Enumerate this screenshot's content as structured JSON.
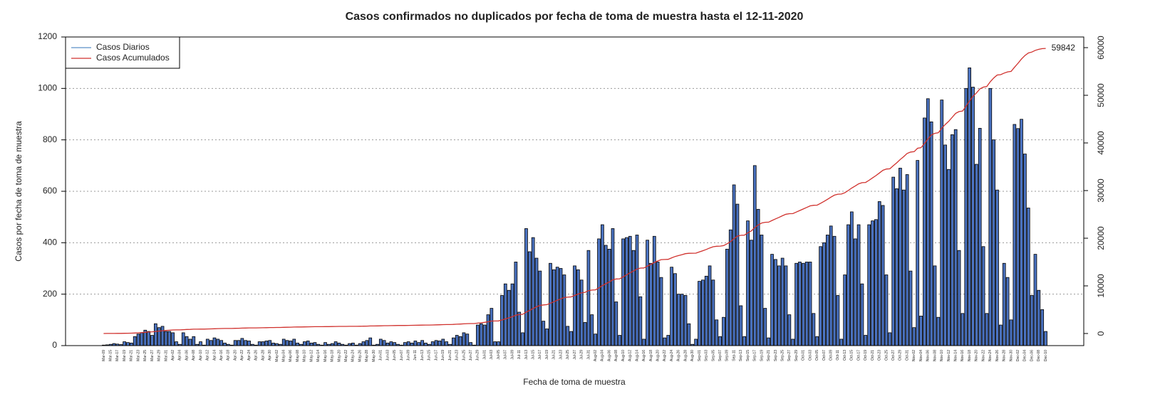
{
  "chart_data": {
    "type": "bar",
    "title": "Casos confirmados no duplicados por fecha de toma de muestra hasta el 12-11-2020",
    "xlabel": "Fecha de toma de muestra",
    "ylabel": "Casos por fecha de toma de muestra",
    "categories": [
      "Mar-09",
      null,
      "Mar-15",
      null,
      "Mar-17",
      null,
      "Mar-19",
      null,
      "Mar-21",
      null,
      "Mar-23",
      null,
      "Mar-25",
      null,
      "Mar-27",
      null,
      "Mar-29",
      null,
      "Mar-31",
      null,
      "Apr-02",
      null,
      "Apr-04",
      null,
      "Apr-06",
      null,
      "Apr-08",
      null,
      "Apr-10",
      null,
      "Apr-12",
      null,
      "Apr-14",
      null,
      "Apr-16",
      null,
      "Apr-18",
      null,
      "Apr-20",
      null,
      "Apr-22",
      null,
      "Apr-24",
      null,
      "Apr-26",
      null,
      "Apr-28",
      null,
      "Apr-30",
      null,
      "May-02",
      null,
      "May-04",
      null,
      "May-06",
      null,
      "May-08",
      null,
      "May-10",
      null,
      "May-12",
      null,
      "May-14",
      null,
      "May-16",
      null,
      "May-18",
      null,
      "May-20",
      null,
      "May-22",
      null,
      "May-24",
      null,
      "May-26",
      null,
      "May-28",
      null,
      "May-30",
      null,
      "Jun-01",
      null,
      "Jun-03",
      null,
      "Jun-05",
      null,
      "Jun-07",
      null,
      "Jun-09",
      null,
      "Jun-11",
      null,
      "Jun-13",
      null,
      "Jun-15",
      null,
      "Jun-17",
      null,
      "Jun-19",
      null,
      "Jun-21",
      null,
      "Jun-23",
      null,
      "Jun-25",
      null,
      "Jun-27",
      null,
      "Jun-29",
      null,
      "Jul-01",
      null,
      "Jul-03",
      null,
      "Jul-05",
      null,
      "Jul-07",
      null,
      "Jul-09",
      null,
      "Jul-11",
      null,
      "Jul-13",
      null,
      "Jul-15",
      null,
      "Jul-17",
      null,
      "Jul-19",
      null,
      "Jul-21",
      null,
      "Jul-23",
      null,
      "Jul-25",
      null,
      "Jul-27",
      null,
      "Jul-29",
      null,
      "Jul-31",
      null,
      "Aug-02",
      null,
      "Aug-04",
      null,
      "Aug-06",
      null,
      "Aug-08",
      null,
      "Aug-10",
      null,
      "Aug-12",
      null,
      "Aug-14",
      null,
      "Aug-16",
      null,
      "Aug-18",
      null,
      "Aug-20",
      null,
      "Aug-22",
      null,
      "Aug-24",
      null,
      "Aug-26",
      null,
      "Aug-28",
      null,
      "Aug-30",
      null,
      "Sep-01",
      null,
      "Sep-03",
      null,
      "Sep-05",
      null,
      "Sep-07",
      null,
      "Sep-09",
      null,
      "Sep-11",
      null,
      "Sep-13",
      null,
      "Sep-15",
      null,
      "Sep-17",
      null,
      "Sep-19",
      null,
      "Sep-21",
      null,
      "Sep-23",
      null,
      "Sep-25",
      null,
      "Sep-27",
      null,
      "Sep-29",
      null,
      "Oct-01",
      null,
      "Oct-03",
      null,
      "Oct-05",
      null,
      "Oct-07",
      null,
      "Oct-09",
      null,
      "Oct-11",
      null,
      "Oct-13",
      null,
      "Oct-15",
      null,
      "Oct-17",
      null,
      "Oct-19",
      null,
      "Oct-21",
      null,
      "Oct-23",
      null,
      "Oct-25",
      null,
      "Oct-27",
      null,
      "Oct-29",
      null,
      "Oct-31",
      null,
      "Nov-02",
      null,
      "Nov-04",
      null,
      "Nov-06",
      null,
      "Nov-08",
      null,
      "Nov-10",
      null,
      "Nov-12",
      null,
      "Nov-14",
      null,
      "Nov-16",
      null,
      "Nov-18",
      null,
      "Nov-20",
      null,
      "Nov-22",
      null,
      "Nov-24",
      null,
      "Nov-26",
      null,
      "Nov-28",
      null,
      "Nov-30",
      null,
      "Dec-02",
      null,
      "Dec-04",
      null,
      "Dec-06",
      null,
      "Dec-08",
      null,
      "Dec-10"
    ],
    "series": [
      {
        "name": "Casos Diarios",
        "type": "bar",
        "color": "#4a72c0",
        "legend_color": "#5b8fc8",
        "values": [
          2,
          3,
          5,
          8,
          6,
          4,
          15,
          12,
          10,
          35,
          45,
          50,
          60,
          55,
          40,
          85,
          70,
          75,
          55,
          55,
          50,
          15,
          5,
          50,
          35,
          25,
          35,
          5,
          15,
          2,
          25,
          20,
          30,
          25,
          20,
          10,
          5,
          2,
          20,
          20,
          28,
          20,
          18,
          5,
          2,
          15,
          15,
          18,
          20,
          10,
          8,
          5,
          25,
          20,
          18,
          25,
          10,
          5,
          15,
          18,
          10,
          12,
          5,
          2,
          12,
          5,
          8,
          15,
          10,
          5,
          2,
          8,
          10,
          2,
          8,
          15,
          20,
          30,
          2,
          5,
          25,
          20,
          10,
          15,
          12,
          5,
          2,
          12,
          15,
          10,
          18,
          12,
          20,
          10,
          5,
          15,
          20,
          18,
          25,
          15,
          5,
          30,
          40,
          35,
          50,
          45,
          12,
          2,
          80,
          85,
          80,
          120,
          145,
          15,
          15,
          195,
          240,
          215,
          240,
          325,
          130,
          50,
          455,
          365,
          420,
          340,
          290,
          95,
          65,
          320,
          295,
          305,
          300,
          275,
          75,
          55,
          310,
          295,
          255,
          90,
          370,
          120,
          45,
          415,
          470,
          390,
          375,
          455,
          170,
          40,
          415,
          420,
          425,
          370,
          430,
          190,
          25,
          410,
          320,
          425,
          325,
          265,
          30,
          40,
          305,
          280,
          200,
          200,
          195,
          85,
          5,
          25,
          250,
          255,
          270,
          310,
          255,
          100,
          35,
          110,
          375,
          450,
          625,
          550,
          155,
          35,
          485,
          410,
          700,
          530,
          430,
          145,
          30,
          355,
          335,
          310,
          340,
          310,
          120,
          25,
          320,
          325,
          320,
          325,
          325,
          125,
          35,
          385,
          400,
          430,
          465,
          425,
          195,
          25,
          275,
          470,
          520,
          415,
          470,
          240,
          40,
          470,
          485,
          490,
          560,
          545,
          275,
          50,
          655,
          610,
          690,
          605,
          665,
          290,
          70,
          720,
          115,
          885,
          960,
          870,
          310,
          110,
          955,
          780,
          685,
          820,
          840,
          370,
          125,
          1000,
          1080,
          1005,
          705,
          845,
          385,
          125,
          1000,
          800,
          605,
          80,
          320,
          265,
          100,
          860,
          844,
          880,
          745,
          535,
          195,
          355,
          215,
          140,
          55
        ]
      },
      {
        "name": "Casos Acumulados",
        "type": "line",
        "axis": "y2",
        "color": "#d0312d",
        "values": [
          2,
          5,
          10,
          18,
          24,
          28,
          43,
          55,
          65,
          100,
          145,
          195,
          255,
          310,
          350,
          435,
          505,
          580,
          635,
          690,
          740,
          755,
          760,
          810,
          845,
          870,
          905,
          910,
          925,
          927,
          952,
          972,
          1002,
          1027,
          1047,
          1057,
          1062,
          1064,
          1084,
          1104,
          1132,
          1152,
          1170,
          1175,
          1177,
          1192,
          1207,
          1225,
          1245,
          1255,
          1263,
          1268,
          1293,
          1313,
          1331,
          1356,
          1366,
          1371,
          1386,
          1404,
          1414,
          1426,
          1431,
          1433,
          1445,
          1450,
          1458,
          1473,
          1483,
          1488,
          1490,
          1498,
          1508,
          1510,
          1518,
          1533,
          1553,
          1583,
          1585,
          1590,
          1615,
          1635,
          1645,
          1660,
          1672,
          1677,
          1679,
          1691,
          1706,
          1716,
          1734,
          1746,
          1766,
          1776,
          1781,
          1796,
          1816,
          1834,
          1859,
          1874,
          1879,
          1909,
          1949,
          1984,
          2034,
          2079,
          2091,
          2093,
          2173,
          2258,
          2338,
          2458,
          2603,
          2618,
          2633,
          2828,
          3068,
          3283,
          3523,
          3848,
          3978,
          4028,
          4483,
          4848,
          5268,
          5608,
          5898,
          5993,
          6058,
          6378,
          6673,
          6978,
          7278,
          7553,
          7628,
          7683,
          7993,
          8288,
          8543,
          8633,
          9003,
          9123,
          9168,
          9583,
          10053,
          10443,
          10818,
          11273,
          11443,
          11483,
          11898,
          12318,
          12743,
          13113,
          13543,
          13733,
          13758,
          14168,
          14488,
          14913,
          15238,
          15503,
          15533,
          15573,
          15878,
          16158,
          16358,
          16558,
          16753,
          16838,
          16843,
          16868,
          17118,
          17373,
          17643,
          17953,
          18208,
          18308,
          18343,
          18453,
          18828,
          19278,
          19903,
          20453,
          20608,
          20643,
          21128,
          21538,
          22238,
          22768,
          23198,
          23343,
          23373,
          23728,
          24063,
          24373,
          24713,
          25023,
          25143,
          25168,
          25488,
          25813,
          26133,
          26458,
          26783,
          26908,
          26943,
          27328,
          27728,
          28158,
          28623,
          29048,
          29243,
          29268,
          29543,
          30013,
          30533,
          30948,
          31418,
          31658,
          31698,
          32168,
          32653,
          33143,
          33703,
          34248,
          34523,
          34573,
          35228,
          35838,
          36528,
          37133,
          37798,
          38088,
          38158,
          38878,
          38993,
          39878,
          40838,
          41708,
          42018,
          42128,
          43083,
          43863,
          44548,
          45368,
          46208,
          46578,
          46703,
          47703,
          48783,
          49788,
          50493,
          51338,
          51723,
          51848,
          52848,
          53648,
          54253,
          54333,
          54653,
          54918,
          55018,
          55878,
          56722,
          57602,
          58347,
          58882,
          59077,
          59432,
          59647,
          59787,
          59842
        ]
      }
    ],
    "end_label": "59842",
    "ylim": [
      0,
      1200
    ],
    "yticks": [
      0,
      200,
      400,
      600,
      800,
      1000,
      1200
    ],
    "y2lim": [
      -2540,
      62240
    ],
    "y2ticks": [
      0,
      10000,
      20000,
      30000,
      40000,
      50000,
      60000
    ],
    "grid": true,
    "legend": "top-left"
  }
}
